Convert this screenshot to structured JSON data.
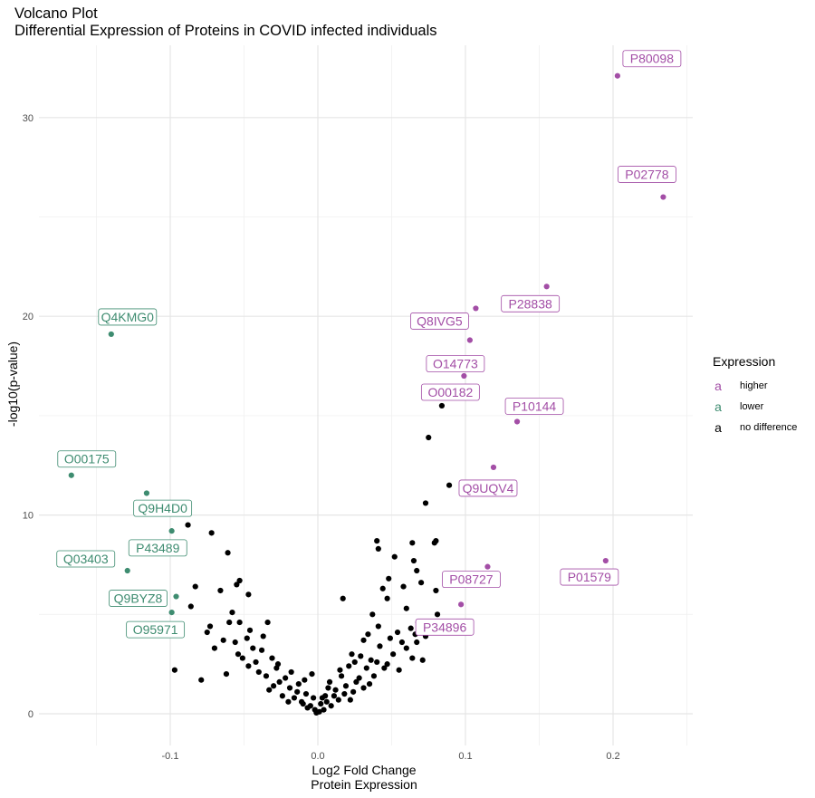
{
  "chart_data": {
    "type": "scatter",
    "title": "Volcano Plot",
    "subtitle": "Differential Expression of Proteins in COVID infected individuals",
    "xlabel": "Log2 Fold Change",
    "xlabel2": "Protein Expression",
    "ylabel": "-log10(p-value)",
    "xlim": [
      -0.188,
      0.25
    ],
    "ylim": [
      -1.5,
      33.5
    ],
    "x_ticks": [
      -0.1,
      0.0,
      0.1,
      0.2
    ],
    "x_tick_labels": [
      "-0.1",
      "0.0",
      "0.1",
      "0.2"
    ],
    "y_ticks": [
      0,
      10,
      20,
      30
    ],
    "y_tick_labels": [
      "0",
      "10",
      "20",
      "30"
    ],
    "grid": true,
    "legend": {
      "title": "Expression",
      "placement": "right",
      "entries": [
        {
          "key": "higher",
          "label": "higher",
          "color": "#a34ea6"
        },
        {
          "key": "lower",
          "label": "lower",
          "color": "#3e8c70"
        },
        {
          "key": "nodiff",
          "label": "no difference",
          "color": "#000000"
        }
      ]
    },
    "series": [
      {
        "name": "higher",
        "color": "#a34ea6",
        "points": [
          {
            "x": 0.203,
            "y": 32.1,
            "label": "P80098"
          },
          {
            "x": 0.234,
            "y": 26.0,
            "label": "P02778"
          },
          {
            "x": 0.155,
            "y": 21.5,
            "label": "P28838"
          },
          {
            "x": 0.107,
            "y": 20.4,
            "label": "Q8IVG5"
          },
          {
            "x": 0.103,
            "y": 18.8,
            "label": "O14773"
          },
          {
            "x": 0.099,
            "y": 17.0,
            "label": "O00182"
          },
          {
            "x": 0.135,
            "y": 14.7,
            "label": "P10144"
          },
          {
            "x": 0.119,
            "y": 12.4,
            "label": "Q9UQV4"
          },
          {
            "x": 0.195,
            "y": 7.7,
            "label": "P01579"
          },
          {
            "x": 0.115,
            "y": 7.4,
            "label": "P08727"
          },
          {
            "x": 0.097,
            "y": 5.5,
            "label": "P34896"
          }
        ]
      },
      {
        "name": "lower",
        "color": "#3e8c70",
        "points": [
          {
            "x": -0.14,
            "y": 19.1,
            "label": "Q4KMG0"
          },
          {
            "x": -0.167,
            "y": 12.0,
            "label": "O00175"
          },
          {
            "x": -0.116,
            "y": 11.1,
            "label": ""
          },
          {
            "x": -0.099,
            "y": 9.2,
            "label": "Q9H4D0"
          },
          {
            "x": -0.129,
            "y": 7.2,
            "label": "Q03403"
          },
          {
            "x": -0.096,
            "y": 5.9,
            "label": "Q9BYZ8"
          },
          {
            "x": -0.099,
            "y": 5.1,
            "label": "O95971"
          },
          {
            "x": -0.098,
            "y": 8.3,
            "label": "P43489"
          }
        ]
      },
      {
        "name": "no difference",
        "color": "#000000",
        "points": [
          {
            "x": 0.084,
            "y": 15.5
          },
          {
            "x": 0.075,
            "y": 13.9
          },
          {
            "x": 0.089,
            "y": 11.5
          },
          {
            "x": 0.073,
            "y": 10.6
          },
          {
            "x": -0.088,
            "y": 9.5
          },
          {
            "x": -0.072,
            "y": 9.1
          },
          {
            "x": -0.061,
            "y": 8.1
          },
          {
            "x": 0.04,
            "y": 8.7
          },
          {
            "x": 0.064,
            "y": 8.6
          },
          {
            "x": 0.08,
            "y": 8.7
          },
          {
            "x": 0.079,
            "y": 8.6
          },
          {
            "x": 0.041,
            "y": 8.3
          },
          {
            "x": 0.052,
            "y": 7.9
          },
          {
            "x": 0.065,
            "y": 7.7
          },
          {
            "x": 0.067,
            "y": 7.2
          },
          {
            "x": 0.048,
            "y": 6.8
          },
          {
            "x": -0.053,
            "y": 6.7
          },
          {
            "x": -0.055,
            "y": 6.5
          },
          {
            "x": -0.066,
            "y": 6.2
          },
          {
            "x": -0.083,
            "y": 6.4
          },
          {
            "x": 0.044,
            "y": 6.3
          },
          {
            "x": 0.058,
            "y": 6.4
          },
          {
            "x": 0.07,
            "y": 6.6
          },
          {
            "x": 0.08,
            "y": 6.2
          },
          {
            "x": -0.047,
            "y": 6.0
          },
          {
            "x": 0.047,
            "y": 5.8
          },
          {
            "x": 0.017,
            "y": 5.8
          },
          {
            "x": -0.086,
            "y": 5.4
          },
          {
            "x": -0.058,
            "y": 5.1
          },
          {
            "x": 0.06,
            "y": 5.3
          },
          {
            "x": 0.081,
            "y": 5.0
          },
          {
            "x": 0.037,
            "y": 5.0
          },
          {
            "x": -0.06,
            "y": 4.6
          },
          {
            "x": -0.053,
            "y": 4.6
          },
          {
            "x": -0.073,
            "y": 4.4
          },
          {
            "x": -0.034,
            "y": 4.6
          },
          {
            "x": 0.068,
            "y": 4.6
          },
          {
            "x": 0.041,
            "y": 4.4
          },
          {
            "x": 0.063,
            "y": 4.3
          },
          {
            "x": 0.085,
            "y": 4.4
          },
          {
            "x": -0.075,
            "y": 4.1
          },
          {
            "x": 0.054,
            "y": 4.1
          },
          {
            "x": 0.066,
            "y": 4.0
          },
          {
            "x": -0.048,
            "y": 3.8
          },
          {
            "x": 0.031,
            "y": 3.7
          },
          {
            "x": 0.049,
            "y": 3.8
          },
          {
            "x": 0.067,
            "y": 3.6
          },
          {
            "x": -0.056,
            "y": 3.6
          },
          {
            "x": -0.044,
            "y": 3.3
          },
          {
            "x": -0.07,
            "y": 3.3
          },
          {
            "x": 0.042,
            "y": 3.4
          },
          {
            "x": 0.06,
            "y": 3.3
          },
          {
            "x": -0.038,
            "y": 3.2
          },
          {
            "x": 0.023,
            "y": 3.0
          },
          {
            "x": 0.029,
            "y": 2.9
          },
          {
            "x": 0.051,
            "y": 3.0
          },
          {
            "x": 0.064,
            "y": 2.8
          },
          {
            "x": -0.051,
            "y": 2.8
          },
          {
            "x": -0.031,
            "y": 2.8
          },
          {
            "x": 0.036,
            "y": 2.7
          },
          {
            "x": 0.071,
            "y": 2.7
          },
          {
            "x": -0.097,
            "y": 2.2
          },
          {
            "x": -0.079,
            "y": 1.7
          },
          {
            "x": -0.047,
            "y": 2.4
          },
          {
            "x": -0.028,
            "y": 2.3
          },
          {
            "x": -0.04,
            "y": 2.1
          },
          {
            "x": 0.021,
            "y": 2.4
          },
          {
            "x": 0.033,
            "y": 2.3
          },
          {
            "x": 0.045,
            "y": 2.3
          },
          {
            "x": 0.055,
            "y": 2.2
          },
          {
            "x": -0.062,
            "y": 2.0
          },
          {
            "x": -0.035,
            "y": 1.9
          },
          {
            "x": -0.022,
            "y": 1.8
          },
          {
            "x": 0.016,
            "y": 1.9
          },
          {
            "x": 0.028,
            "y": 1.8
          },
          {
            "x": -0.004,
            "y": 2.0
          },
          {
            "x": -0.013,
            "y": 1.5
          },
          {
            "x": 0.008,
            "y": 1.6
          },
          {
            "x": 0.019,
            "y": 1.4
          },
          {
            "x": -0.019,
            "y": 1.3
          },
          {
            "x": -0.03,
            "y": 1.4
          },
          {
            "x": 0.012,
            "y": 1.2
          },
          {
            "x": 0.024,
            "y": 1.1
          },
          {
            "x": 0.035,
            "y": 1.5
          },
          {
            "x": -0.008,
            "y": 1.0
          },
          {
            "x": -0.016,
            "y": 0.8
          },
          {
            "x": 0.005,
            "y": 0.9
          },
          {
            "x": 0.014,
            "y": 0.7
          },
          {
            "x": -0.024,
            "y": 0.9
          },
          {
            "x": -0.011,
            "y": 0.6
          },
          {
            "x": 0.002,
            "y": 0.5
          },
          {
            "x": 0.009,
            "y": 0.4
          },
          {
            "x": -0.005,
            "y": 0.4
          },
          {
            "x": -0.002,
            "y": 0.2
          },
          {
            "x": 0.001,
            "y": 0.1
          },
          {
            "x": 0.004,
            "y": 0.2
          },
          {
            "x": -0.001,
            "y": 0.05
          },
          {
            "x": -0.007,
            "y": 0.3
          },
          {
            "x": 0.006,
            "y": 0.6
          },
          {
            "x": -0.01,
            "y": 0.5
          },
          {
            "x": 0.011,
            "y": 0.9
          },
          {
            "x": -0.014,
            "y": 1.1
          },
          {
            "x": 0.018,
            "y": 1.0
          },
          {
            "x": -0.02,
            "y": 0.6
          },
          {
            "x": 0.022,
            "y": 0.7
          },
          {
            "x": -0.026,
            "y": 1.6
          },
          {
            "x": 0.026,
            "y": 1.6
          },
          {
            "x": -0.033,
            "y": 1.2
          },
          {
            "x": 0.031,
            "y": 1.3
          },
          {
            "x": 0.038,
            "y": 1.9
          },
          {
            "x": -0.042,
            "y": 2.6
          },
          {
            "x": 0.04,
            "y": 2.6
          },
          {
            "x": -0.054,
            "y": 3.0
          },
          {
            "x": 0.047,
            "y": 2.5
          },
          {
            "x": -0.046,
            "y": 4.2
          },
          {
            "x": 0.057,
            "y": 3.6
          },
          {
            "x": -0.037,
            "y": 3.9
          },
          {
            "x": 0.034,
            "y": 4.0
          },
          {
            "x": -0.064,
            "y": 3.7
          },
          {
            "x": 0.073,
            "y": 3.9
          },
          {
            "x": -0.027,
            "y": 2.5
          },
          {
            "x": 0.025,
            "y": 2.6
          },
          {
            "x": -0.018,
            "y": 2.1
          },
          {
            "x": 0.015,
            "y": 2.2
          },
          {
            "x": -0.009,
            "y": 1.7
          },
          {
            "x": 0.007,
            "y": 1.3
          },
          {
            "x": -0.003,
            "y": 0.8
          },
          {
            "x": 0.003,
            "y": 0.8
          }
        ]
      }
    ]
  }
}
